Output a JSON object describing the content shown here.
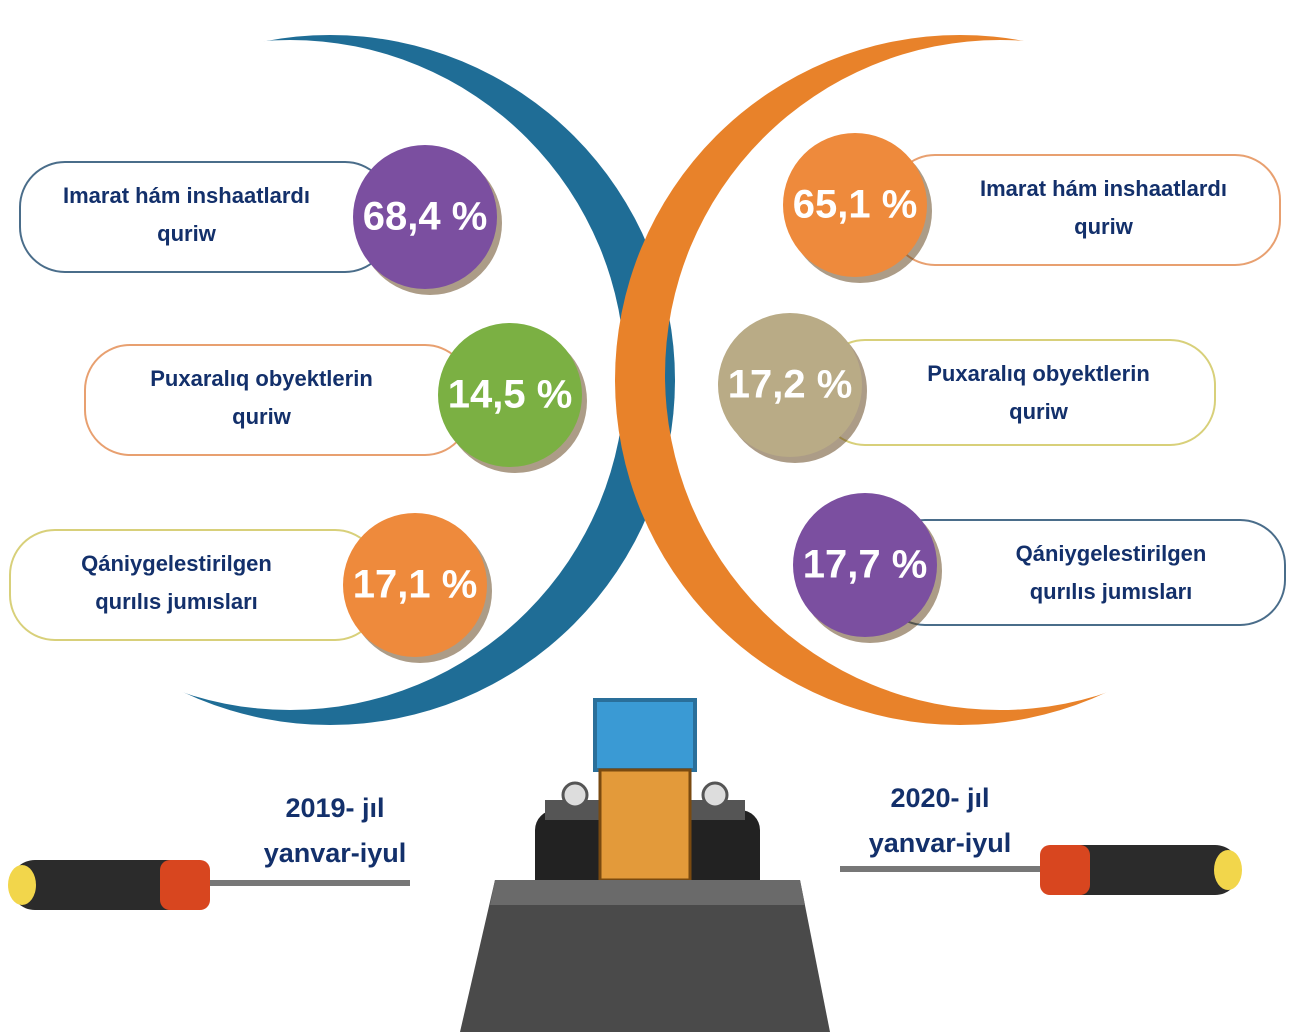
{
  "panels": [
    {
      "period": [
        "2019- jıl",
        "yanvar-iyul"
      ],
      "items": [
        {
          "label": [
            "Imarat hám inshaatlardı",
            "quriw"
          ],
          "value": "68,4 %"
        },
        {
          "label": [
            "Puxaralıq  obyektlerin",
            "quriw"
          ],
          "value": "14,5 %"
        },
        {
          "label": [
            "Qániygelestirilgen",
            "qurılıs jumısları"
          ],
          "value": "17,1 %"
        }
      ]
    },
    {
      "period": [
        "2020- jıl",
        "yanvar-iyul"
      ],
      "items": [
        {
          "label": [
            "Imarat hám inshaatlardı",
            "quriw"
          ],
          "value": "65,1 %"
        },
        {
          "label": [
            "Puxaralıq  obyektlerin",
            "quriw"
          ],
          "value": "17,2 %"
        },
        {
          "label": [
            "Qániygelestirilgen",
            "qurılıs jumısları"
          ],
          "value": "17,7 %"
        }
      ]
    }
  ]
}
